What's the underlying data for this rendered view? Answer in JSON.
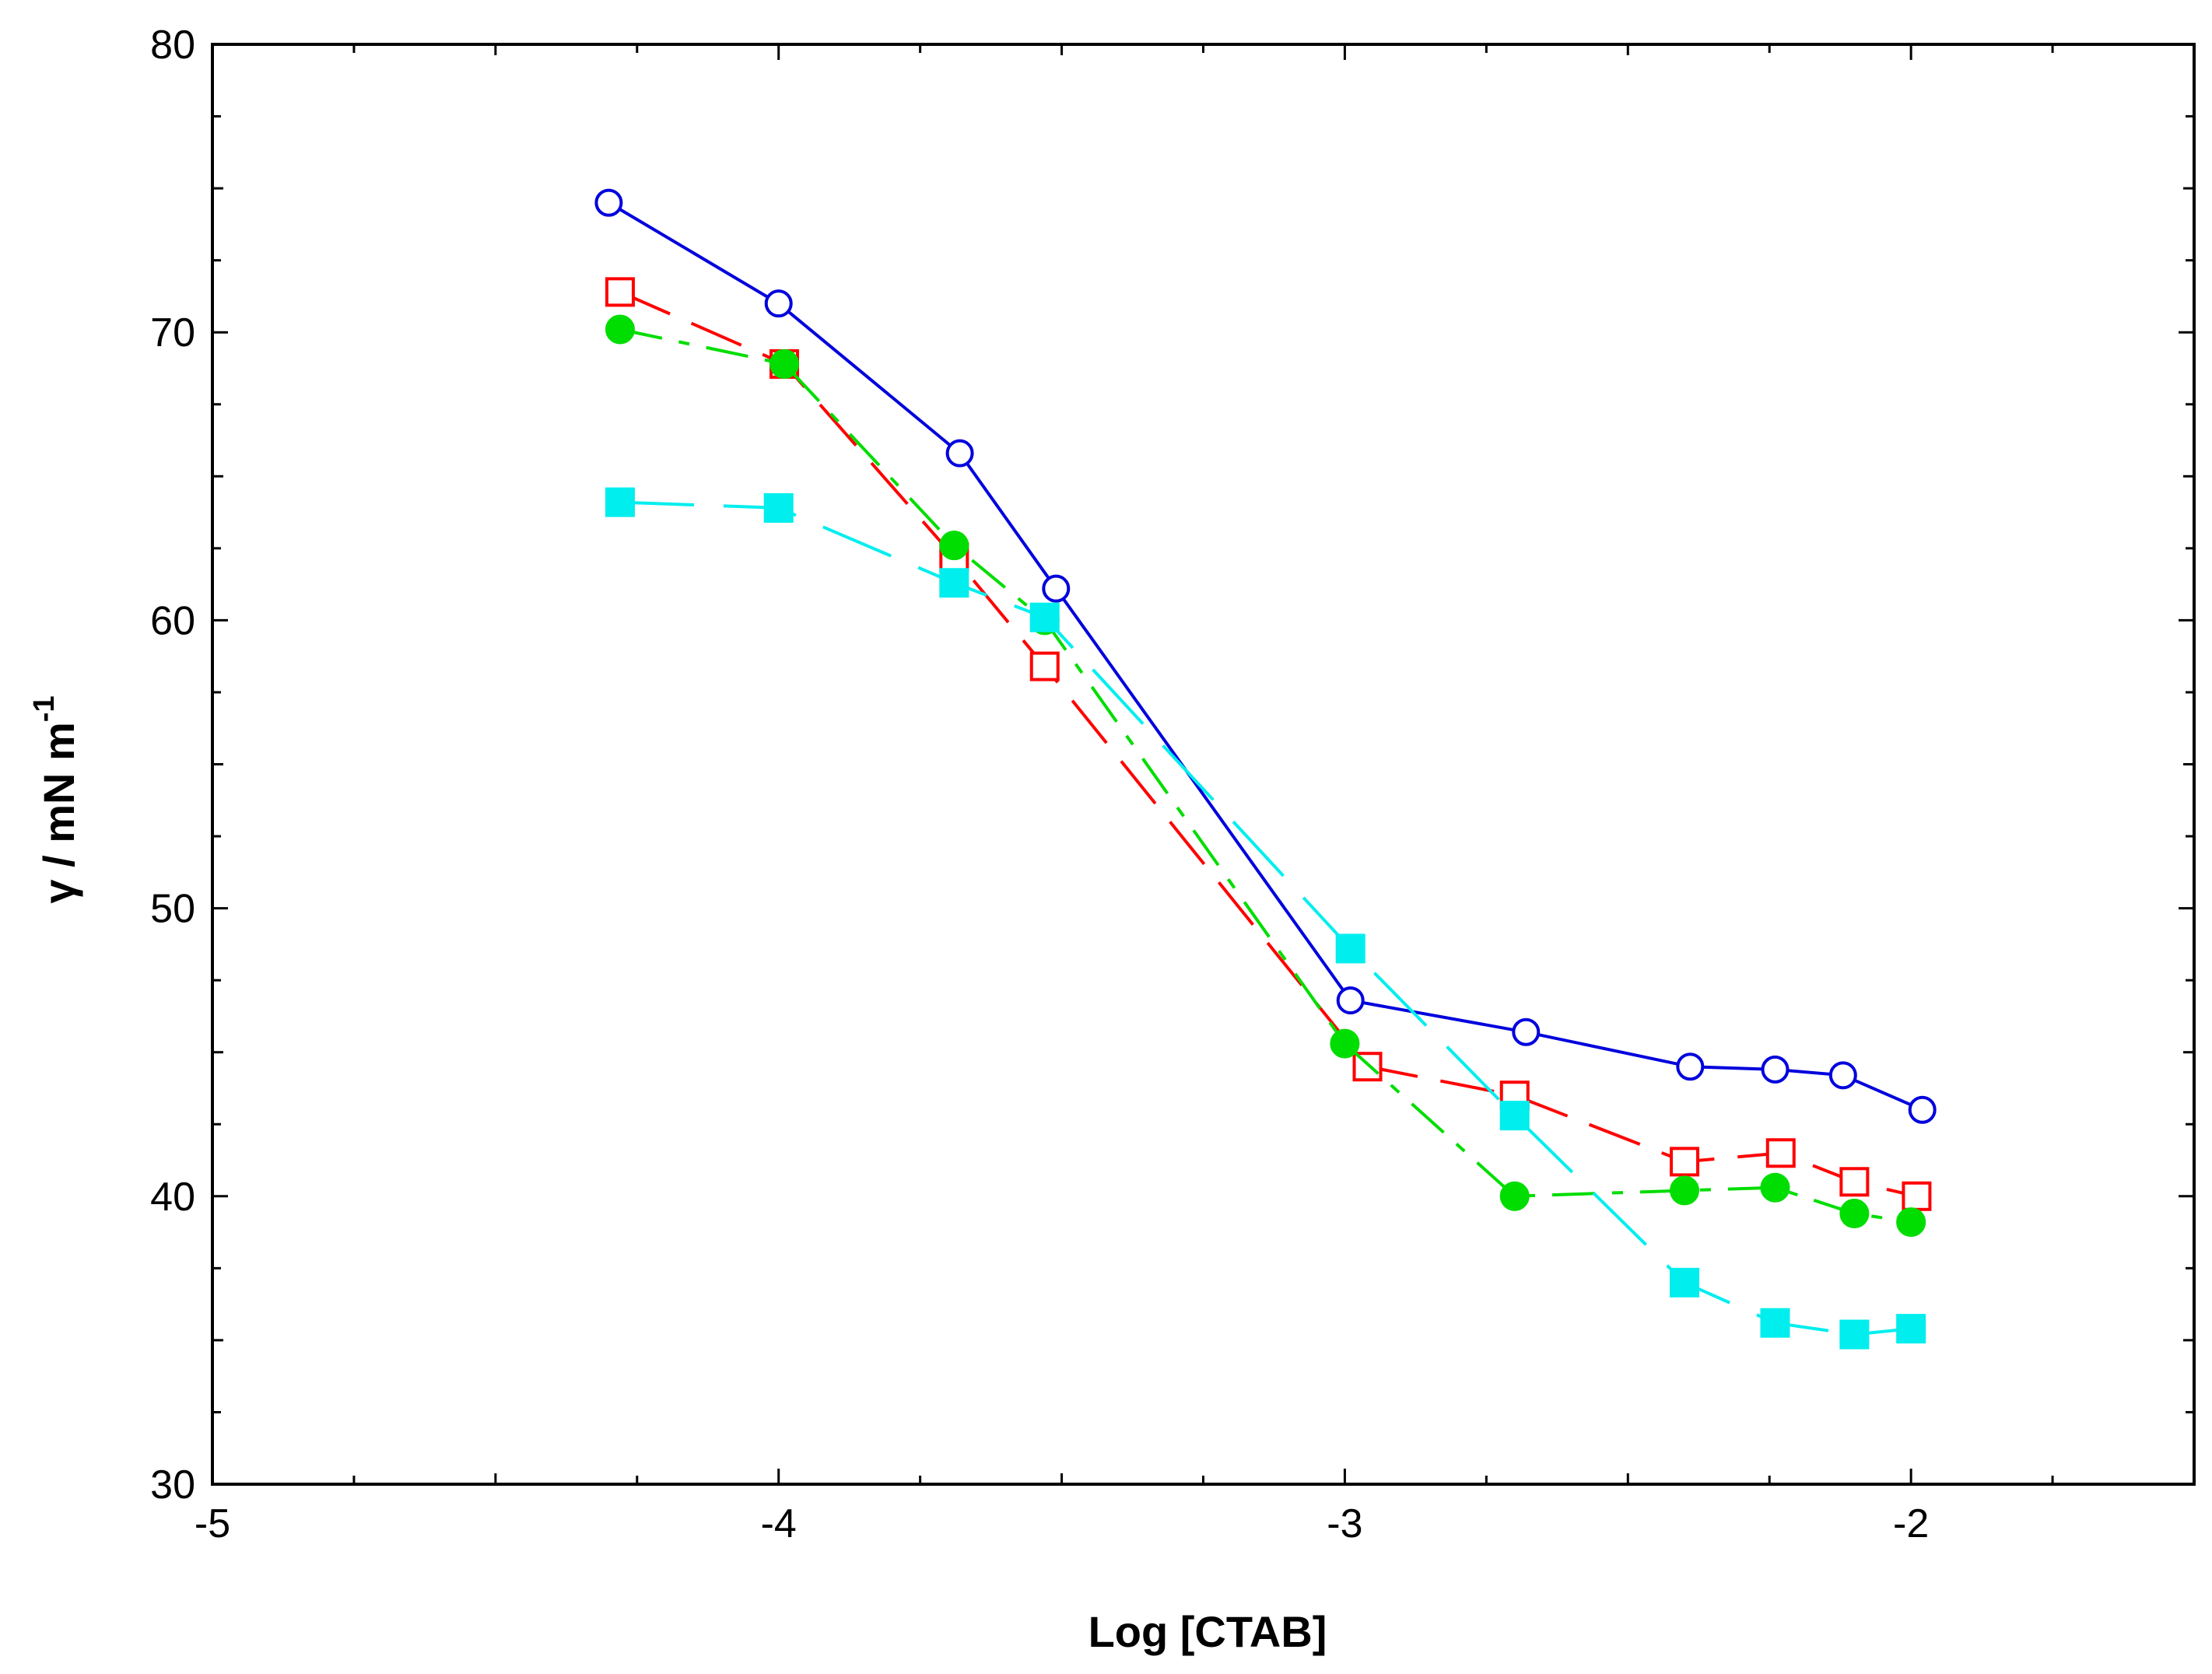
{
  "chart_data": {
    "type": "line",
    "title": "",
    "xlabel": "Log [CTAB]",
    "ylabel_main": "γ / mN m",
    "ylabel_sup": "-1",
    "xlim": [
      -5,
      -1.5
    ],
    "ylim": [
      30,
      80
    ],
    "x_ticks": [
      -5,
      -4,
      -3,
      -2
    ],
    "x_tick_labels": [
      "-5",
      "-4",
      "-3",
      "-2"
    ],
    "y_ticks": [
      30,
      40,
      50,
      60,
      70,
      80
    ],
    "y_tick_labels": [
      "30",
      "40",
      "50",
      "60",
      "70",
      "80"
    ],
    "grid": false,
    "legend": "none",
    "series": [
      {
        "marker": "open-circle",
        "color": "#0000dd",
        "line": "solid",
        "x": [
          -4.3,
          -4.0,
          -3.68,
          -3.51,
          -2.99,
          -2.68,
          -2.39,
          -2.24,
          -2.12,
          -1.98
        ],
        "y": [
          74.5,
          71.0,
          65.8,
          61.1,
          46.8,
          45.7,
          44.5,
          44.4,
          44.2,
          43.0
        ]
      },
      {
        "marker": "open-square",
        "color": "#ff0000",
        "line": "dashed",
        "x": [
          -4.28,
          -3.99,
          -3.69,
          -3.53,
          -2.96,
          -2.7,
          -2.4,
          -2.23,
          -2.1,
          -1.99
        ],
        "y": [
          71.4,
          68.9,
          62.2,
          58.4,
          44.5,
          43.5,
          41.2,
          41.5,
          40.5,
          40.0
        ]
      },
      {
        "marker": "filled-circle",
        "color": "#00dd00",
        "line": "dash-dot",
        "x": [
          -4.28,
          -3.99,
          -3.69,
          -3.53,
          -3.0,
          -2.7,
          -2.4,
          -2.24,
          -2.1,
          -2.0
        ],
        "y": [
          70.1,
          68.9,
          62.6,
          60.0,
          45.3,
          40.0,
          40.2,
          40.3,
          39.4,
          39.1
        ]
      },
      {
        "marker": "filled-square",
        "color": "#00eeee",
        "line": "long-dash",
        "x": [
          -4.28,
          -4.0,
          -3.69,
          -3.53,
          -2.99,
          -2.7,
          -2.4,
          -2.24,
          -2.1,
          -2.0
        ],
        "y": [
          64.1,
          63.9,
          61.3,
          60.1,
          48.6,
          42.8,
          37.0,
          35.6,
          35.2,
          35.4
        ]
      }
    ]
  }
}
